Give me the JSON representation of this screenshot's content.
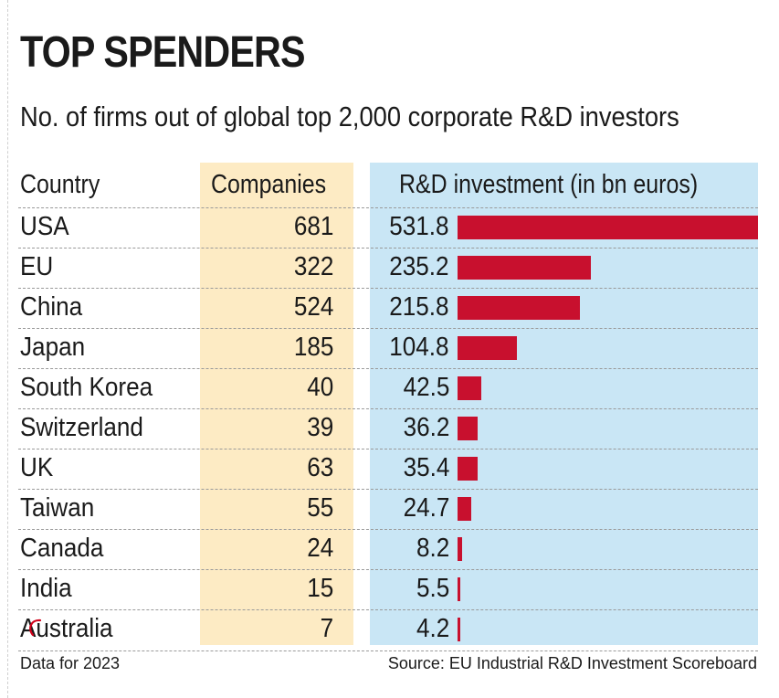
{
  "title": "TOP SPENDERS",
  "subtitle": "No. of firms out of global top 2,000 corporate R&D investors",
  "columns": {
    "country": "Country",
    "companies": "Companies",
    "rd": "R&D investment (in bn euros)"
  },
  "footer": {
    "note": "Data for 2023",
    "source": "Source: EU Industrial R&D Investment Scoreboard"
  },
  "colors": {
    "bar": "#c8102e",
    "companies_panel": "#fdebc4",
    "rd_panel": "#c9e6f5"
  },
  "chart_data": {
    "type": "table",
    "title": "TOP SPENDERS",
    "subtitle": "No. of firms out of global top 2,000 corporate R&D investors",
    "columns": [
      "Country",
      "Companies",
      "R&D investment (in bn euros)"
    ],
    "rows": [
      {
        "country": "USA",
        "companies": 681,
        "rd": 531.8,
        "rd_label": "531.8"
      },
      {
        "country": "EU",
        "companies": 322,
        "rd": 235.2,
        "rd_label": "235.2"
      },
      {
        "country": "China",
        "companies": 524,
        "rd": 215.8,
        "rd_label": "215.8"
      },
      {
        "country": "Japan",
        "companies": 185,
        "rd": 104.8,
        "rd_label": "104.8"
      },
      {
        "country": "South Korea",
        "companies": 40,
        "rd": 42.5,
        "rd_label": "42.5"
      },
      {
        "country": "Switzerland",
        "companies": 39,
        "rd": 36.2,
        "rd_label": "36.2"
      },
      {
        "country": "UK",
        "companies": 63,
        "rd": 35.4,
        "rd_label": "35.4"
      },
      {
        "country": "Taiwan",
        "companies": 55,
        "rd": 24.7,
        "rd_label": "24.7"
      },
      {
        "country": "Canada",
        "companies": 24,
        "rd": 8.2,
        "rd_label": "8.2"
      },
      {
        "country": "India",
        "companies": 15,
        "rd": 5.5,
        "rd_label": "5.5"
      },
      {
        "country": "Australia",
        "companies": 7,
        "rd": 4.2,
        "rd_label": "4.2"
      }
    ],
    "bar_series": "rd",
    "xlim": [
      0,
      531.8
    ]
  }
}
